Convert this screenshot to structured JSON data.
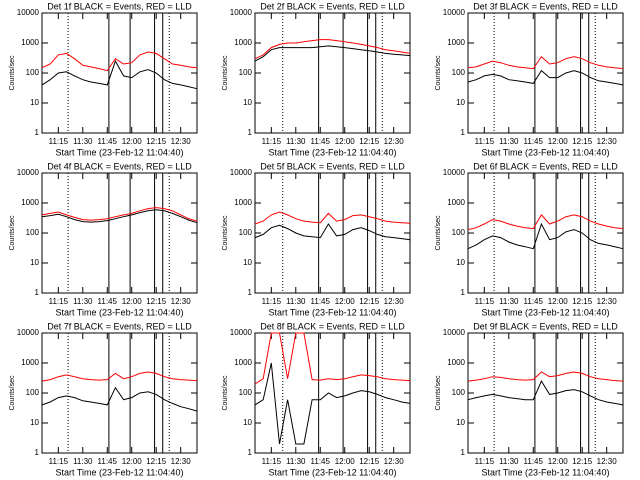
{
  "chart_data": [
    {
      "type": "line",
      "title": "Det 1f BLACK = Events, RED = LLD",
      "xlabel": "Start Time (23-Feb-12 11:04:40)",
      "ylabel": "Counts/sec",
      "x": [
        "11:05",
        "11:10",
        "11:15",
        "11:20",
        "11:25",
        "11:30",
        "11:35",
        "11:40",
        "11:45",
        "11:50",
        "11:55",
        "12:00",
        "12:05",
        "12:10",
        "12:15",
        "12:20",
        "12:25",
        "12:30",
        "12:35",
        "12:40"
      ],
      "xlim": [
        "11:05",
        "12:40"
      ],
      "xticks": [
        "11:15",
        "11:30",
        "11:45",
        "12:00",
        "12:15",
        "12:30"
      ],
      "ylim": [
        1,
        10000
      ],
      "yticks": [
        1,
        10,
        100,
        1000,
        10000
      ],
      "ylog": true,
      "vlines": [
        {
          "x": "11:21",
          "style": "dotted"
        },
        {
          "x": "11:46",
          "style": "solid"
        },
        {
          "x": "11:59",
          "style": "solid"
        },
        {
          "x": "12:14",
          "style": "solid"
        },
        {
          "x": "12:19",
          "style": "solid"
        },
        {
          "x": "12:23",
          "style": "dotted"
        }
      ],
      "series": [
        {
          "color": "#ff0000",
          "values": [
            150,
            200,
            400,
            450,
            300,
            180,
            160,
            140,
            120,
            300,
            200,
            220,
            400,
            500,
            450,
            300,
            200,
            180,
            160,
            150
          ]
        },
        {
          "color": "#000000",
          "values": [
            40,
            60,
            100,
            110,
            80,
            60,
            50,
            45,
            40,
            250,
            80,
            70,
            110,
            130,
            100,
            60,
            45,
            40,
            35,
            30
          ]
        }
      ]
    },
    {
      "type": "line",
      "title": "Det 2f BLACK = Events, RED = LLD",
      "xlabel": "Start Time (23-Feb-12 11:04:40)",
      "ylabel": "Counts/sec",
      "x": [
        "11:05",
        "11:10",
        "11:15",
        "11:20",
        "11:25",
        "11:30",
        "11:35",
        "11:40",
        "11:45",
        "11:50",
        "11:55",
        "12:00",
        "12:05",
        "12:10",
        "12:15",
        "12:20",
        "12:25",
        "12:30",
        "12:35",
        "12:40"
      ],
      "xlim": [
        "11:05",
        "12:40"
      ],
      "xticks": [
        "11:15",
        "11:30",
        "11:45",
        "12:00",
        "12:15",
        "12:30"
      ],
      "ylim": [
        1,
        10000
      ],
      "yticks": [
        1,
        10,
        100,
        1000,
        10000
      ],
      "ylog": true,
      "vlines": [
        {
          "x": "11:22",
          "style": "dotted"
        },
        {
          "x": "11:44",
          "style": "solid"
        },
        {
          "x": "11:59",
          "style": "solid"
        },
        {
          "x": "12:14",
          "style": "solid"
        },
        {
          "x": "12:19",
          "style": "solid"
        },
        {
          "x": "12:23",
          "style": "dotted"
        }
      ],
      "series": [
        {
          "color": "#ff0000",
          "values": [
            300,
            400,
            700,
            900,
            1000,
            1000,
            1100,
            1200,
            1300,
            1300,
            1200,
            1100,
            1000,
            900,
            800,
            700,
            600,
            550,
            500,
            450
          ]
        },
        {
          "color": "#000000",
          "values": [
            250,
            350,
            600,
            700,
            700,
            700,
            700,
            700,
            750,
            800,
            750,
            700,
            650,
            600,
            550,
            500,
            450,
            420,
            400,
            380
          ]
        }
      ]
    },
    {
      "type": "line",
      "title": "Det 3f BLACK = Events, RED = LLD",
      "xlabel": "Start Time (23-Feb-12 11:04:40)",
      "ylabel": "Counts/sec",
      "x": [
        "11:05",
        "11:10",
        "11:15",
        "11:20",
        "11:25",
        "11:30",
        "11:35",
        "11:40",
        "11:45",
        "11:50",
        "11:55",
        "12:00",
        "12:05",
        "12:10",
        "12:15",
        "12:20",
        "12:25",
        "12:30",
        "12:35",
        "12:40"
      ],
      "xlim": [
        "11:05",
        "12:40"
      ],
      "xticks": [
        "11:15",
        "11:30",
        "11:45",
        "12:00",
        "12:15",
        "12:30"
      ],
      "ylim": [
        1,
        10000
      ],
      "yticks": [
        1,
        10,
        100,
        1000,
        10000
      ],
      "ylog": true,
      "vlines": [
        {
          "x": "11:21",
          "style": "dotted"
        },
        {
          "x": "11:46",
          "style": "solid"
        },
        {
          "x": "11:59",
          "style": "solid"
        },
        {
          "x": "12:14",
          "style": "solid"
        },
        {
          "x": "12:19",
          "style": "solid"
        },
        {
          "x": "12:23",
          "style": "dotted"
        }
      ],
      "series": [
        {
          "color": "#ff0000",
          "values": [
            150,
            160,
            200,
            250,
            220,
            180,
            160,
            150,
            140,
            350,
            200,
            220,
            300,
            350,
            300,
            220,
            180,
            160,
            150,
            140
          ]
        },
        {
          "color": "#000000",
          "values": [
            50,
            60,
            80,
            90,
            80,
            60,
            55,
            50,
            45,
            120,
            70,
            70,
            100,
            120,
            100,
            70,
            55,
            50,
            45,
            40
          ]
        }
      ]
    },
    {
      "type": "line",
      "title": "Det 4f BLACK = Events, RED = LLD",
      "xlabel": "Start Time (23-Feb-12 11:04:40)",
      "ylabel": "Counts/sec",
      "x": [
        "11:05",
        "11:10",
        "11:15",
        "11:20",
        "11:25",
        "11:30",
        "11:35",
        "11:40",
        "11:45",
        "11:50",
        "11:55",
        "12:00",
        "12:05",
        "12:10",
        "12:15",
        "12:20",
        "12:25",
        "12:30",
        "12:35",
        "12:40"
      ],
      "xlim": [
        "11:05",
        "12:40"
      ],
      "xticks": [
        "11:15",
        "11:30",
        "11:45",
        "12:00",
        "12:15",
        "12:30"
      ],
      "ylim": [
        1,
        10000
      ],
      "yticks": [
        1,
        10,
        100,
        1000,
        10000
      ],
      "ylog": true,
      "vlines": [
        {
          "x": "11:21",
          "style": "dotted"
        },
        {
          "x": "11:46",
          "style": "solid"
        },
        {
          "x": "11:59",
          "style": "solid"
        },
        {
          "x": "12:14",
          "style": "solid"
        },
        {
          "x": "12:19",
          "style": "solid"
        },
        {
          "x": "12:23",
          "style": "dotted"
        }
      ],
      "series": [
        {
          "color": "#ff0000",
          "values": [
            400,
            450,
            500,
            400,
            330,
            280,
            270,
            280,
            300,
            350,
            400,
            450,
            550,
            650,
            700,
            650,
            550,
            400,
            300,
            250
          ]
        },
        {
          "color": "#000000",
          "values": [
            350,
            380,
            420,
            350,
            280,
            240,
            230,
            240,
            260,
            300,
            350,
            400,
            480,
            550,
            600,
            550,
            450,
            350,
            270,
            220
          ]
        }
      ]
    },
    {
      "type": "line",
      "title": "Det 5f BLACK = Events, RED = LLD",
      "xlabel": "Start Time (23-Feb-12 11:04:40)",
      "ylabel": "Counts/sec",
      "x": [
        "11:05",
        "11:10",
        "11:15",
        "11:20",
        "11:25",
        "11:30",
        "11:35",
        "11:40",
        "11:45",
        "11:50",
        "11:55",
        "12:00",
        "12:05",
        "12:10",
        "12:15",
        "12:20",
        "12:25",
        "12:30",
        "12:35",
        "12:40"
      ],
      "xlim": [
        "11:05",
        "12:40"
      ],
      "xticks": [
        "11:15",
        "11:30",
        "11:45",
        "12:00",
        "12:15",
        "12:30"
      ],
      "ylim": [
        1,
        10000
      ],
      "yticks": [
        1,
        10,
        100,
        1000,
        10000
      ],
      "ylog": true,
      "vlines": [
        {
          "x": "11:22",
          "style": "dotted"
        },
        {
          "x": "11:44",
          "style": "solid"
        },
        {
          "x": "11:59",
          "style": "solid"
        },
        {
          "x": "12:14",
          "style": "solid"
        },
        {
          "x": "12:19",
          "style": "solid"
        },
        {
          "x": "12:23",
          "style": "dotted"
        }
      ],
      "series": [
        {
          "color": "#ff0000",
          "values": [
            200,
            250,
            400,
            500,
            400,
            300,
            250,
            230,
            220,
            450,
            250,
            280,
            380,
            400,
            350,
            300,
            250,
            230,
            220,
            210
          ]
        },
        {
          "color": "#000000",
          "values": [
            70,
            90,
            150,
            180,
            140,
            100,
            80,
            75,
            70,
            200,
            80,
            90,
            130,
            150,
            120,
            90,
            75,
            70,
            65,
            60
          ]
        }
      ]
    },
    {
      "type": "line",
      "title": "Det 6f BLACK = Events, RED = LLD",
      "xlabel": "Start Time (23-Feb-12 11:04:40)",
      "ylabel": "Counts/sec",
      "x": [
        "11:05",
        "11:10",
        "11:15",
        "11:20",
        "11:25",
        "11:30",
        "11:35",
        "11:40",
        "11:45",
        "11:50",
        "11:55",
        "12:00",
        "12:05",
        "12:10",
        "12:15",
        "12:20",
        "12:25",
        "12:30",
        "12:35",
        "12:40"
      ],
      "xlim": [
        "11:05",
        "12:40"
      ],
      "xticks": [
        "11:15",
        "11:30",
        "11:45",
        "12:00",
        "12:15",
        "12:30"
      ],
      "ylim": [
        1,
        10000
      ],
      "yticks": [
        1,
        10,
        100,
        1000,
        10000
      ],
      "ylog": true,
      "vlines": [
        {
          "x": "11:21",
          "style": "dotted"
        },
        {
          "x": "11:46",
          "style": "solid"
        },
        {
          "x": "11:59",
          "style": "solid"
        },
        {
          "x": "12:14",
          "style": "solid"
        },
        {
          "x": "12:19",
          "style": "solid"
        },
        {
          "x": "12:23",
          "style": "dotted"
        }
      ],
      "series": [
        {
          "color": "#ff0000",
          "values": [
            130,
            150,
            200,
            280,
            250,
            200,
            170,
            150,
            140,
            400,
            200,
            250,
            350,
            400,
            350,
            250,
            200,
            170,
            150,
            140
          ]
        },
        {
          "color": "#000000",
          "values": [
            30,
            40,
            60,
            80,
            70,
            50,
            40,
            35,
            30,
            200,
            60,
            70,
            110,
            130,
            100,
            60,
            45,
            40,
            35,
            30
          ]
        }
      ]
    },
    {
      "type": "line",
      "title": "Det 7f BLACK = Events, RED = LLD",
      "xlabel": "Start Time (23-Feb-12 11:04:40)",
      "ylabel": "Counts/sec",
      "x": [
        "11:05",
        "11:10",
        "11:15",
        "11:20",
        "11:25",
        "11:30",
        "11:35",
        "11:40",
        "11:45",
        "11:50",
        "11:55",
        "12:00",
        "12:05",
        "12:10",
        "12:15",
        "12:20",
        "12:25",
        "12:30",
        "12:35",
        "12:40"
      ],
      "xlim": [
        "11:05",
        "12:40"
      ],
      "xticks": [
        "11:15",
        "11:30",
        "11:45",
        "12:00",
        "12:15",
        "12:30"
      ],
      "ylim": [
        1,
        10000
      ],
      "yticks": [
        1,
        10,
        100,
        1000,
        10000
      ],
      "ylog": true,
      "vlines": [
        {
          "x": "11:21",
          "style": "dotted"
        },
        {
          "x": "11:46",
          "style": "solid"
        },
        {
          "x": "11:59",
          "style": "solid"
        },
        {
          "x": "12:14",
          "style": "solid"
        },
        {
          "x": "12:19",
          "style": "solid"
        },
        {
          "x": "12:23",
          "style": "dotted"
        }
      ],
      "series": [
        {
          "color": "#ff0000",
          "values": [
            250,
            280,
            350,
            400,
            350,
            300,
            280,
            270,
            280,
            450,
            300,
            350,
            450,
            500,
            450,
            350,
            300,
            280,
            270,
            260
          ]
        },
        {
          "color": "#000000",
          "values": [
            40,
            50,
            70,
            80,
            70,
            55,
            50,
            45,
            40,
            150,
            60,
            70,
            100,
            110,
            90,
            60,
            45,
            35,
            30,
            25
          ]
        }
      ]
    },
    {
      "type": "line",
      "title": "Det 8f BLACK = Events, RED = LLD",
      "xlabel": "Start Time (23-Feb-12 11:04:40)",
      "ylabel": "Counts/sec",
      "x": [
        "11:05",
        "11:10",
        "11:15",
        "11:20",
        "11:25",
        "11:30",
        "11:35",
        "11:40",
        "11:45",
        "11:50",
        "11:55",
        "12:00",
        "12:05",
        "12:10",
        "12:15",
        "12:20",
        "12:25",
        "12:30",
        "12:35",
        "12:40"
      ],
      "xlim": [
        "11:05",
        "12:40"
      ],
      "xticks": [
        "11:15",
        "11:30",
        "11:45",
        "12:00",
        "12:15",
        "12:30"
      ],
      "ylim": [
        1,
        10000
      ],
      "yticks": [
        1,
        10,
        100,
        1000,
        10000
      ],
      "ylog": true,
      "vlines": [
        {
          "x": "11:22",
          "style": "dotted"
        },
        {
          "x": "11:44",
          "style": "solid"
        },
        {
          "x": "11:59",
          "style": "solid"
        },
        {
          "x": "12:14",
          "style": "solid"
        },
        {
          "x": "12:19",
          "style": "solid"
        },
        {
          "x": "12:23",
          "style": "dotted"
        }
      ],
      "series": [
        {
          "color": "#ff0000",
          "values": [
            200,
            300,
            10000,
            10000,
            300,
            10000,
            10000,
            280,
            270,
            300,
            280,
            300,
            350,
            400,
            380,
            350,
            300,
            280,
            270,
            260
          ]
        },
        {
          "color": "#000000",
          "values": [
            40,
            60,
            1000,
            2,
            60,
            2,
            2,
            60,
            60,
            100,
            70,
            80,
            100,
            120,
            110,
            90,
            70,
            60,
            50,
            45
          ]
        }
      ]
    },
    {
      "type": "line",
      "title": "Det 9f BLACK = Events, RED = LLD",
      "xlabel": "Start Time (23-Feb-12 11:04:40)",
      "ylabel": "Counts/sec",
      "x": [
        "11:05",
        "11:10",
        "11:15",
        "11:20",
        "11:25",
        "11:30",
        "11:35",
        "11:40",
        "11:45",
        "11:50",
        "11:55",
        "12:00",
        "12:05",
        "12:10",
        "12:15",
        "12:20",
        "12:25",
        "12:30",
        "12:35",
        "12:40"
      ],
      "xlim": [
        "11:05",
        "12:40"
      ],
      "xticks": [
        "11:15",
        "11:30",
        "11:45",
        "12:00",
        "12:15",
        "12:30"
      ],
      "ylim": [
        1,
        10000
      ],
      "yticks": [
        1,
        10,
        100,
        1000,
        10000
      ],
      "ylog": true,
      "vlines": [
        {
          "x": "11:21",
          "style": "dotted"
        },
        {
          "x": "11:46",
          "style": "solid"
        },
        {
          "x": "11:59",
          "style": "solid"
        },
        {
          "x": "12:14",
          "style": "solid"
        },
        {
          "x": "12:19",
          "style": "solid"
        },
        {
          "x": "12:23",
          "style": "dotted"
        }
      ],
      "series": [
        {
          "color": "#ff0000",
          "values": [
            250,
            270,
            300,
            350,
            330,
            300,
            280,
            270,
            280,
            500,
            350,
            380,
            450,
            500,
            450,
            350,
            300,
            280,
            260,
            250
          ]
        },
        {
          "color": "#000000",
          "values": [
            60,
            70,
            80,
            90,
            80,
            70,
            65,
            60,
            60,
            250,
            90,
            100,
            120,
            130,
            110,
            80,
            60,
            50,
            45,
            40
          ]
        }
      ]
    }
  ]
}
